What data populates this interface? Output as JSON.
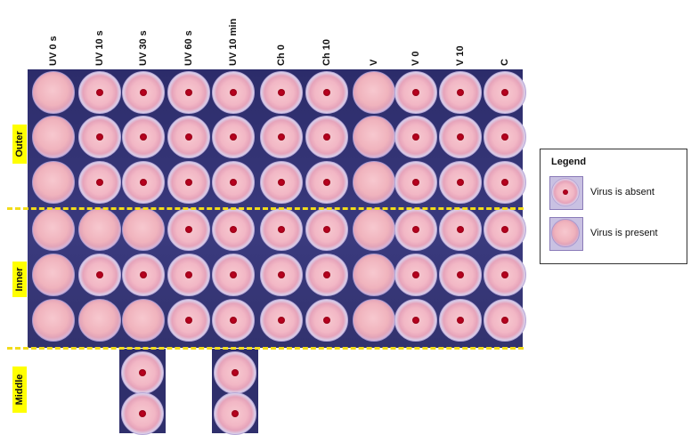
{
  "columns": [
    "UV 0 s",
    "UV 10 s",
    "UV 30 s",
    "UV 60 s",
    "UV 10 min",
    "Ch 0",
    "Ch 10",
    "V",
    "V 0",
    "V 10",
    "C"
  ],
  "sections": {
    "outer": "Outer",
    "inner": "Inner",
    "middle": "Middle"
  },
  "legend": {
    "title": "Legend",
    "absent": "Virus is absent",
    "present": "Virus is present"
  },
  "colors": {
    "dashed_divider": "#f2dc1a",
    "label_highlight": "#ffff00",
    "plate_background": "#32326e",
    "dot": "#c40020"
  },
  "wells": [
    [
      "present",
      "absent",
      "absent",
      "absent",
      "absent",
      "absent",
      "absent",
      "present",
      "absent",
      "absent",
      "absent"
    ],
    [
      "present",
      "absent",
      "absent",
      "absent",
      "absent",
      "absent",
      "absent",
      "present",
      "absent",
      "absent",
      "absent"
    ],
    [
      "present",
      "absent",
      "absent",
      "absent",
      "absent",
      "absent",
      "absent",
      "present",
      "absent",
      "absent",
      "absent"
    ],
    [
      "present",
      "present",
      "present",
      "absent",
      "absent",
      "absent",
      "absent",
      "present",
      "absent",
      "absent",
      "absent"
    ],
    [
      "present",
      "absent",
      "absent",
      "absent",
      "absent",
      "absent",
      "absent",
      "present",
      "absent",
      "absent",
      "absent"
    ],
    [
      "present",
      "present",
      "present",
      "absent",
      "absent",
      "absent",
      "absent",
      "present",
      "absent",
      "absent",
      "absent"
    ]
  ],
  "middle_wells": [
    {
      "column": "UV 30 s",
      "results": [
        "absent",
        "absent"
      ]
    },
    {
      "column": "UV 10 min",
      "results": [
        "absent",
        "absent"
      ]
    }
  ]
}
